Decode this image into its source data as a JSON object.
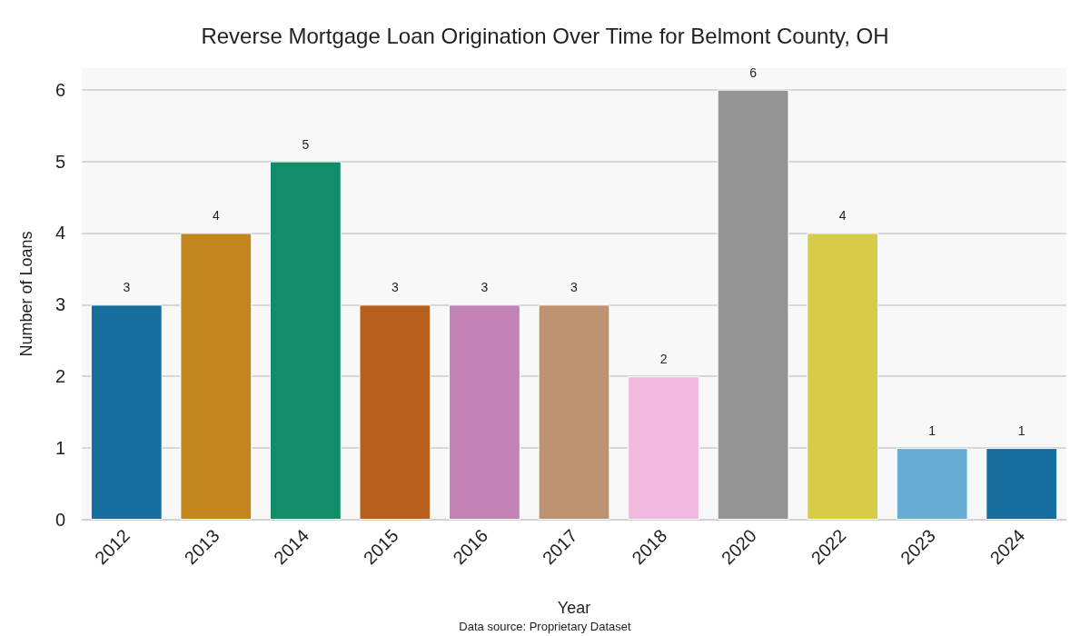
{
  "chart_data": {
    "type": "bar",
    "title": "Reverse Mortgage Loan Origination Over Time for Belmont County, OH",
    "xlabel": "Year",
    "ylabel": "Number of Loans",
    "categories": [
      "2012",
      "2013",
      "2014",
      "2015",
      "2016",
      "2017",
      "2018",
      "2020",
      "2022",
      "2023",
      "2024"
    ],
    "values": [
      3,
      4,
      5,
      3,
      3,
      3,
      2,
      6,
      4,
      1,
      1
    ],
    "colors": [
      "#176d9c",
      "#c2861e",
      "#138d69",
      "#b75f1c",
      "#c283b6",
      "#bc9270",
      "#f1b9e0",
      "#949494",
      "#d6cc4a",
      "#67aed6",
      "#176d9c"
    ],
    "ylim": [
      0,
      6.3
    ],
    "yticks": [
      0,
      1,
      2,
      3,
      4,
      5,
      6
    ],
    "grid": "y",
    "data_labels": true,
    "annotations": [
      "Data source: Proprietary Dataset"
    ]
  }
}
